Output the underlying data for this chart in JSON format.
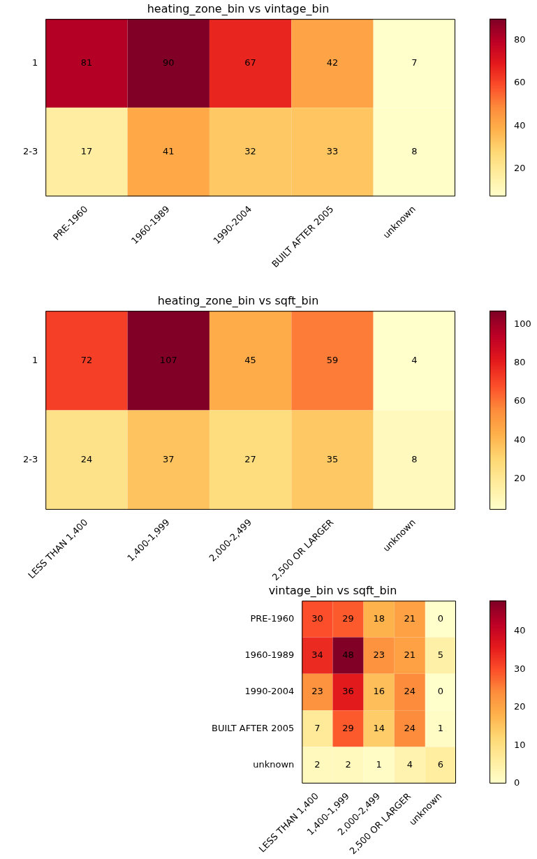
{
  "chart_data": [
    {
      "type": "heatmap",
      "title": "heating_zone_bin vs vintage_bin",
      "categories": [
        "PRE-1960",
        "1960-1989",
        "1990-2004",
        "BUILT AFTER 2005",
        "unknown"
      ],
      "y_categories": [
        "1",
        "2-3"
      ],
      "cells": [
        [
          81,
          90,
          67,
          42,
          7
        ],
        [
          17,
          41,
          32,
          33,
          8
        ]
      ],
      "clim": [
        7,
        90
      ],
      "cticks": [
        20,
        40,
        60,
        80
      ],
      "data_labels": true
    },
    {
      "type": "heatmap",
      "title": "heating_zone_bin vs sqft_bin",
      "categories": [
        "LESS THAN 1,400",
        "1,400-1,999",
        "2,000-2,499",
        "2,500 OR LARGER",
        "unknown"
      ],
      "y_categories": [
        "1",
        "2-3"
      ],
      "cells": [
        [
          72,
          107,
          45,
          59,
          4
        ],
        [
          24,
          37,
          27,
          35,
          8
        ]
      ],
      "clim": [
        4,
        107
      ],
      "cticks": [
        20,
        40,
        60,
        80,
        100
      ],
      "data_labels": true
    },
    {
      "type": "heatmap",
      "title": "vintage_bin vs sqft_bin",
      "categories": [
        "LESS THAN 1,400",
        "1,400-1,999",
        "2,000-2,499",
        "2,500 OR LARGER",
        "unknown"
      ],
      "y_categories": [
        "PRE-1960",
        "1960-1989",
        "1990-2004",
        "BUILT AFTER 2005",
        "unknown"
      ],
      "cells": [
        [
          30,
          29,
          18,
          21,
          0
        ],
        [
          34,
          48,
          23,
          21,
          5
        ],
        [
          23,
          36,
          16,
          24,
          0
        ],
        [
          7,
          29,
          14,
          24,
          1
        ],
        [
          2,
          2,
          1,
          4,
          6
        ]
      ],
      "clim": [
        0,
        48
      ],
      "cticks": [
        0,
        10,
        20,
        30,
        40
      ],
      "data_labels": true
    }
  ]
}
